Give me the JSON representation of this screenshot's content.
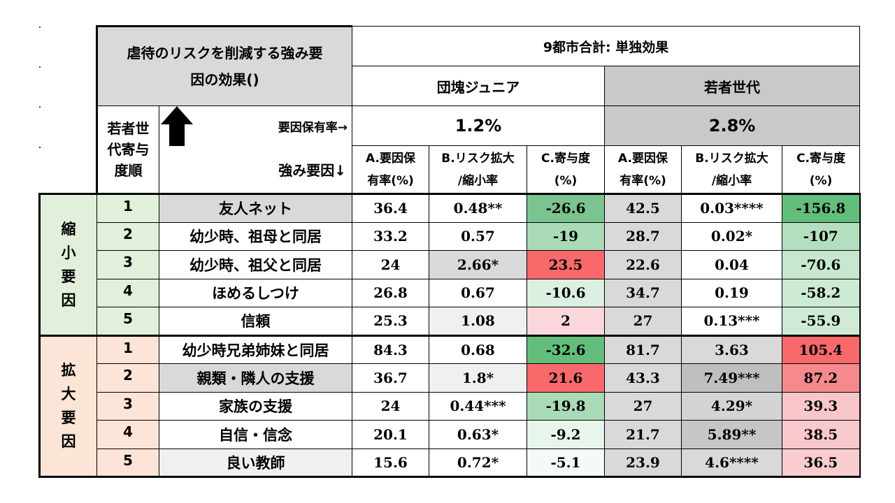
{
  "title_lines": [
    "虐待のリスクを削減する強み要",
    "因の効果()"
  ],
  "top_header": "9都市合計: 単独効果",
  "groups": [
    {
      "name": "団塊ジュニア",
      "rate": "1.2%"
    },
    {
      "name": "若者世代",
      "rate": "2.8%"
    }
  ],
  "rank_header_lines": [
    "若者世",
    "代寄与",
    "度順"
  ],
  "rate_label": "要因保有率→",
  "factor_label": "強み要因↓",
  "col_headers": [
    [
      "A.要因保",
      "有率(%)"
    ],
    [
      "B.リスク拡大",
      "/縮小率"
    ],
    [
      "C.寄与度",
      "(%)"
    ],
    [
      "A.要因保",
      "有率(%)"
    ],
    [
      "B.リスク拡大",
      "/縮小率"
    ],
    [
      "C.寄与度",
      "(%)"
    ]
  ],
  "categories": [
    {
      "label": "縮小要因",
      "chars": [
        "縮",
        "小",
        "要",
        "因"
      ],
      "color": "#e2efda"
    },
    {
      "label": "拡大要因",
      "chars": [
        "拡",
        "大",
        "要",
        "因"
      ],
      "color": "#fce4d6"
    }
  ],
  "rows": [
    {
      "rank": "1",
      "factor": "友人ネット",
      "factor_bg": "#d9d9d9",
      "cells": [
        {
          "v": "36.4",
          "bg": "#ffffff"
        },
        {
          "v": "0.48**",
          "bg": "#ffffff"
        },
        {
          "v": "-26.6",
          "bg": "#7cc48f"
        },
        {
          "v": "42.5",
          "bg": "#d9d9d9"
        },
        {
          "v": "0.03****",
          "bg": "#ffffff"
        },
        {
          "v": "-156.8",
          "bg": "#63be7b"
        }
      ]
    },
    {
      "rank": "2",
      "factor": "幼少時、祖母と同居",
      "factor_bg": "#ffffff",
      "cells": [
        {
          "v": "33.2",
          "bg": "#ffffff"
        },
        {
          "v": "0.57",
          "bg": "#ffffff"
        },
        {
          "v": "-19",
          "bg": "#a9dbb6"
        },
        {
          "v": "28.7",
          "bg": "#d9d9d9"
        },
        {
          "v": "0.02*",
          "bg": "#ffffff"
        },
        {
          "v": "-107",
          "bg": "#b3dfbe"
        }
      ]
    },
    {
      "rank": "3",
      "factor": "幼少時、祖父と同居",
      "factor_bg": "#ffffff",
      "cells": [
        {
          "v": "24",
          "bg": "#ffffff"
        },
        {
          "v": "2.66*",
          "bg": "#d9d9d9"
        },
        {
          "v": "23.5",
          "bg": "#f8696b"
        },
        {
          "v": "22.6",
          "bg": "#d9d9d9"
        },
        {
          "v": "0.04",
          "bg": "#ffffff"
        },
        {
          "v": "-70.6",
          "bg": "#c7e8cf"
        }
      ]
    },
    {
      "rank": "4",
      "factor": "ほめるしつけ",
      "factor_bg": "#ffffff",
      "cells": [
        {
          "v": "26.8",
          "bg": "#ffffff"
        },
        {
          "v": "0.67",
          "bg": "#ffffff"
        },
        {
          "v": "-10.6",
          "bg": "#dcf0e1"
        },
        {
          "v": "34.7",
          "bg": "#d9d9d9"
        },
        {
          "v": "0.19",
          "bg": "#ffffff"
        },
        {
          "v": "-58.2",
          "bg": "#cdead4"
        }
      ]
    },
    {
      "rank": "5",
      "factor": "信頼",
      "factor_bg": "#ffffff",
      "cells": [
        {
          "v": "25.3",
          "bg": "#ffffff"
        },
        {
          "v": "1.08",
          "bg": "#f0f0f0"
        },
        {
          "v": "2",
          "bg": "#fad7db"
        },
        {
          "v": "27",
          "bg": "#d9d9d9"
        },
        {
          "v": "0.13***",
          "bg": "#ffffff"
        },
        {
          "v": "-55.9",
          "bg": "#cfebd6"
        }
      ]
    },
    {
      "rank": "1",
      "factor": "幼少時兄弟姉妹と同居",
      "factor_bg": "#ffffff",
      "cells": [
        {
          "v": "84.3",
          "bg": "#ffffff"
        },
        {
          "v": "0.68",
          "bg": "#ffffff"
        },
        {
          "v": "-32.6",
          "bg": "#63be7b"
        },
        {
          "v": "81.7",
          "bg": "#d9d9d9"
        },
        {
          "v": "3.63",
          "bg": "#d9d9d9"
        },
        {
          "v": "105.4",
          "bg": "#f8696b"
        }
      ]
    },
    {
      "rank": "2",
      "factor": "親類・隣人の支援",
      "factor_bg": "#d9d9d9",
      "cells": [
        {
          "v": "36.7",
          "bg": "#ffffff"
        },
        {
          "v": "1.8*",
          "bg": "#f0f0f0"
        },
        {
          "v": "21.6",
          "bg": "#f8696b"
        },
        {
          "v": "43.3",
          "bg": "#d9d9d9"
        },
        {
          "v": "7.49***",
          "bg": "#bfbfbf"
        },
        {
          "v": "87.2",
          "bg": "#f5898c"
        }
      ]
    },
    {
      "rank": "3",
      "factor": "家族の支援",
      "factor_bg": "#ffffff",
      "cells": [
        {
          "v": "24",
          "bg": "#ffffff"
        },
        {
          "v": "0.44***",
          "bg": "#ffffff"
        },
        {
          "v": "-19.8",
          "bg": "#a9dbb6"
        },
        {
          "v": "27",
          "bg": "#d9d9d9"
        },
        {
          "v": "4.29*",
          "bg": "#d4d4d4"
        },
        {
          "v": "39.3",
          "bg": "#f9c6ca"
        }
      ]
    },
    {
      "rank": "4",
      "factor": "自信・信念",
      "factor_bg": "#ffffff",
      "cells": [
        {
          "v": "20.1",
          "bg": "#ffffff"
        },
        {
          "v": "0.63*",
          "bg": "#ffffff"
        },
        {
          "v": "-9.2",
          "bg": "#e7f5ea"
        },
        {
          "v": "21.7",
          "bg": "#d9d9d9"
        },
        {
          "v": "5.89**",
          "bg": "#c6c6c6"
        },
        {
          "v": "38.5",
          "bg": "#f9c8cc"
        }
      ]
    },
    {
      "rank": "5",
      "factor": "良い教師",
      "factor_bg": "#f0f0f0",
      "cells": [
        {
          "v": "15.6",
          "bg": "#ffffff"
        },
        {
          "v": "0.72*",
          "bg": "#ffffff"
        },
        {
          "v": "-5.1",
          "bg": "#f4fbf6"
        },
        {
          "v": "23.9",
          "bg": "#d9d9d9"
        },
        {
          "v": "4.6****",
          "bg": "#d9d9d9"
        },
        {
          "v": "36.5",
          "bg": "#f9ccd0"
        }
      ]
    }
  ]
}
